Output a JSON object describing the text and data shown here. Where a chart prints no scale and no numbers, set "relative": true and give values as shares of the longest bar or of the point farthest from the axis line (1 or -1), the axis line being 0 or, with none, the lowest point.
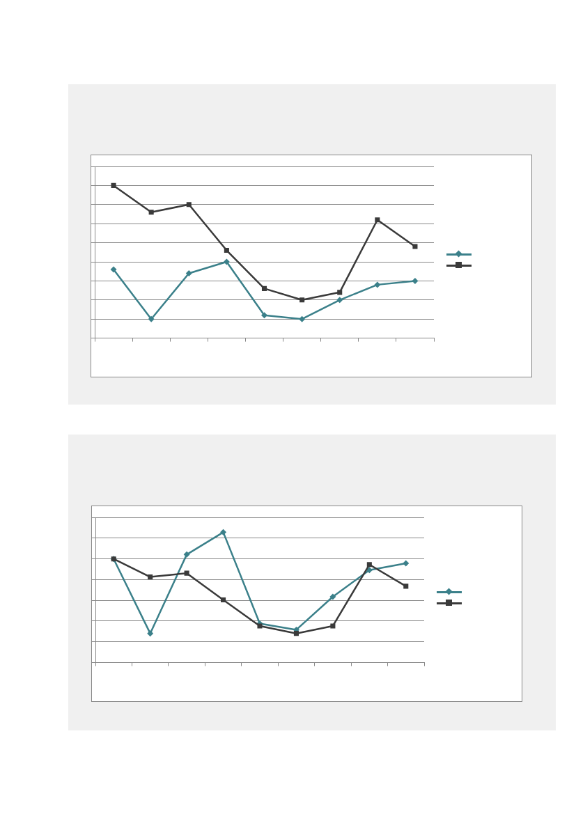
{
  "chart_data": [
    {
      "type": "line",
      "relative": true,
      "categories": [
        null,
        null,
        null,
        null,
        null,
        null,
        null,
        null,
        null
      ],
      "grid": "y",
      "series": [
        {
          "color": "#3b808a",
          "marker": "diamond",
          "values": [
            0.45,
            0.125,
            0.425,
            0.5,
            0.15,
            0.125,
            0.25,
            0.35,
            0.375
          ]
        },
        {
          "color": "#3a3a3a",
          "marker": "square",
          "values": [
            1,
            0.825,
            0.875,
            0.575,
            0.325,
            0.25,
            0.3,
            0.775,
            0.6
          ]
        }
      ]
    },
    {
      "type": "line",
      "relative": true,
      "categories": [
        null,
        null,
        null,
        null,
        null,
        null,
        null,
        null,
        null
      ],
      "grid": "y",
      "series": [
        {
          "color": "#3b808a",
          "marker": "diamond",
          "values": [
            0.795,
            0.224,
            0.829,
            1,
            0.3,
            0.252,
            0.505,
            0.71,
            0.762
          ]
        },
        {
          "color": "#3a3a3a",
          "marker": "square",
          "values": [
            0.795,
            0.657,
            0.686,
            0.481,
            0.281,
            0.224,
            0.281,
            0.752,
            0.586
          ]
        }
      ]
    }
  ]
}
